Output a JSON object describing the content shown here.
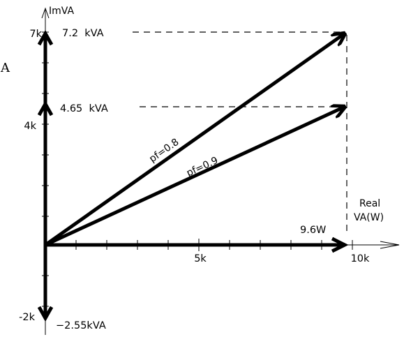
{
  "diagram": {
    "axes": {
      "y_label": "ImVA",
      "x_label_line1": "Real",
      "x_label_line2": "VA(W)",
      "x_ticks": [
        "5k",
        "10k"
      ],
      "y_ticks": [
        "7k",
        "4k",
        "-2k"
      ]
    },
    "values": {
      "s_08": "7.2  kVA",
      "s_09": "4.65  kVA",
      "p": "9.6W",
      "q_cap": "−2.55kVA"
    },
    "vectors": {
      "pf_08": "pf=0.8",
      "pf_09": "pf=0.9"
    },
    "clipped_text": "A",
    "colors": {
      "ink": "#000000",
      "background": "#ffffff"
    }
  }
}
